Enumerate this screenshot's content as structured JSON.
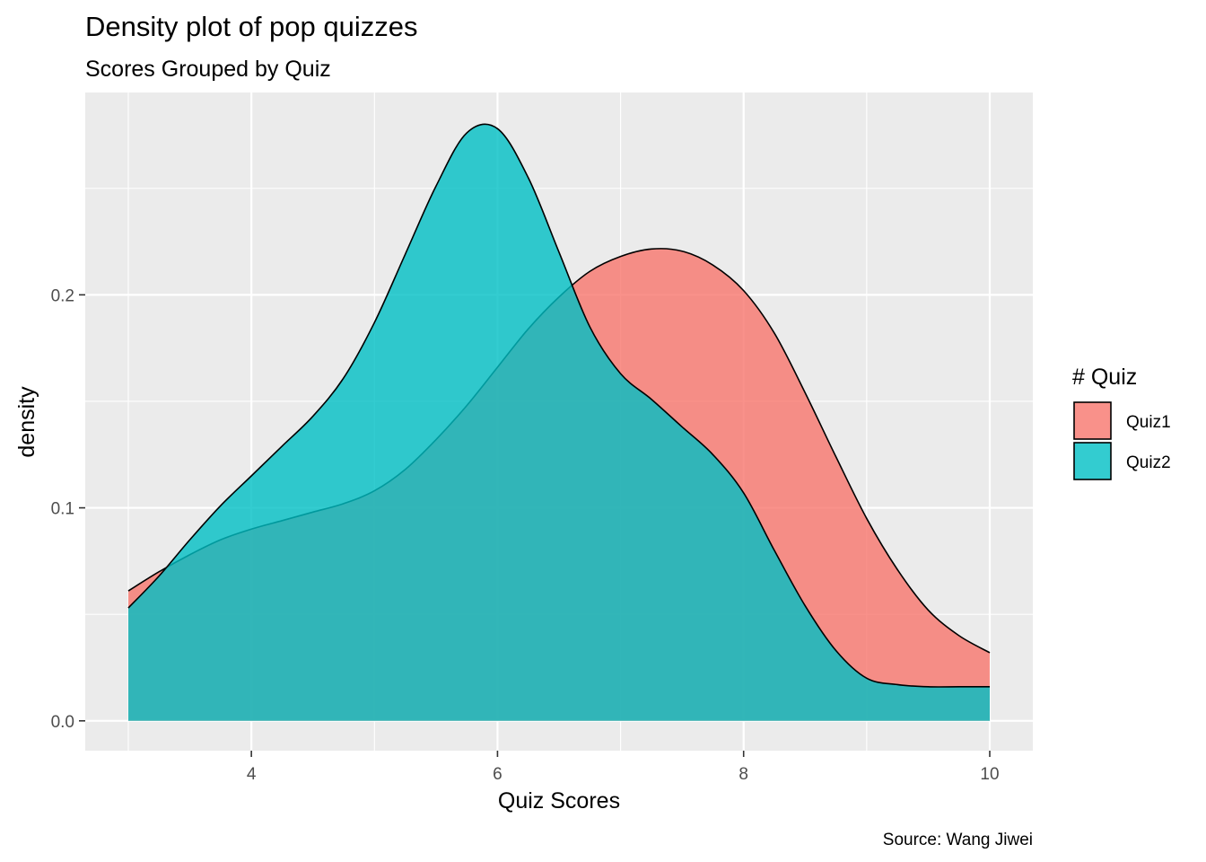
{
  "chart_data": {
    "type": "area",
    "title": "Density plot of pop quizzes",
    "subtitle": "Scores Grouped by Quiz",
    "xlabel": "Quiz Scores",
    "ylabel": "density",
    "caption": "Source: Wang Jiwei",
    "xlim": [
      2.65,
      10.35
    ],
    "ylim": [
      -0.014,
      0.295
    ],
    "x_ticks": [
      4,
      6,
      8,
      10
    ],
    "x_tick_labels": [
      "4",
      "6",
      "8",
      "10"
    ],
    "y_ticks": [
      0.0,
      0.1,
      0.2
    ],
    "y_tick_labels": [
      "0.0",
      "0.1",
      "0.2"
    ],
    "grid": true,
    "legend": {
      "title": "# Quiz",
      "position": "right"
    },
    "series": [
      {
        "name": "Quiz1",
        "color": "#F8766D",
        "x": [
          3.0,
          3.25,
          3.5,
          3.75,
          4.0,
          4.25,
          4.5,
          4.75,
          5.0,
          5.25,
          5.5,
          5.75,
          6.0,
          6.25,
          6.5,
          6.75,
          7.0,
          7.25,
          7.5,
          7.75,
          8.0,
          8.25,
          8.5,
          8.75,
          9.0,
          9.25,
          9.5,
          9.75,
          10.0
        ],
        "y": [
          0.061,
          0.07,
          0.078,
          0.085,
          0.09,
          0.094,
          0.098,
          0.102,
          0.108,
          0.118,
          0.132,
          0.148,
          0.166,
          0.184,
          0.199,
          0.211,
          0.218,
          0.2215,
          0.2205,
          0.214,
          0.202,
          0.182,
          0.154,
          0.124,
          0.095,
          0.071,
          0.052,
          0.04,
          0.032
        ]
      },
      {
        "name": "Quiz2",
        "color": "#00BFC4",
        "x": [
          3.0,
          3.25,
          3.5,
          3.75,
          4.0,
          4.25,
          4.5,
          4.75,
          5.0,
          5.25,
          5.5,
          5.75,
          6.0,
          6.25,
          6.5,
          6.75,
          7.0,
          7.25,
          7.5,
          7.75,
          8.0,
          8.25,
          8.5,
          8.75,
          9.0,
          9.25,
          9.5,
          9.75,
          10.0
        ],
        "y": [
          0.053,
          0.068,
          0.085,
          0.101,
          0.115,
          0.129,
          0.143,
          0.161,
          0.187,
          0.219,
          0.251,
          0.276,
          0.278,
          0.255,
          0.22,
          0.185,
          0.163,
          0.151,
          0.138,
          0.125,
          0.107,
          0.08,
          0.054,
          0.033,
          0.02,
          0.017,
          0.016,
          0.016,
          0.016
        ]
      }
    ]
  }
}
